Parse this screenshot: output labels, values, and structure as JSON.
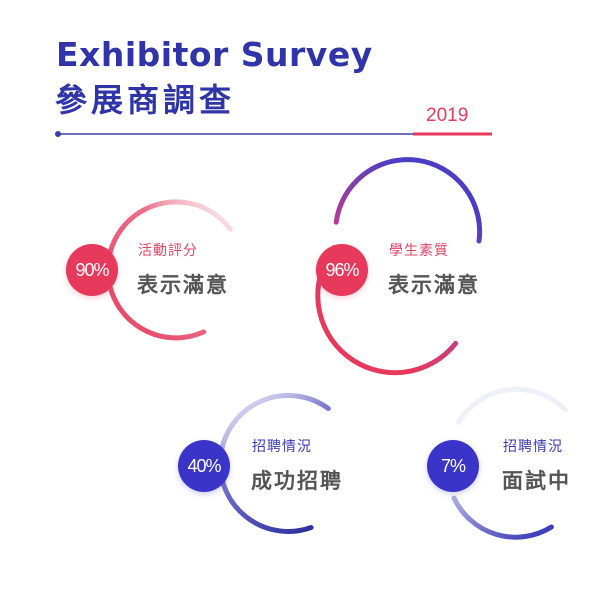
{
  "header": {
    "title_en": "Exhibitor Survey",
    "title_zh": "參展商調查",
    "year": "2019"
  },
  "colors": {
    "title": "#2f35a8",
    "accent_red": "#e7395b",
    "accent_blue": "#3a35c8",
    "big_label": "#555555"
  },
  "stats": [
    {
      "percent": "90%",
      "category": "活動評分",
      "result": "表示滿意",
      "color": "red"
    },
    {
      "percent": "96%",
      "category": "學生素質",
      "result": "表示滿意",
      "color": "red"
    },
    {
      "percent": "40%",
      "category": "招聘情況",
      "result": "成功招聘",
      "color": "blue"
    },
    {
      "percent": "7%",
      "category": "招聘情況",
      "result": "面試中",
      "color": "blue"
    }
  ]
}
